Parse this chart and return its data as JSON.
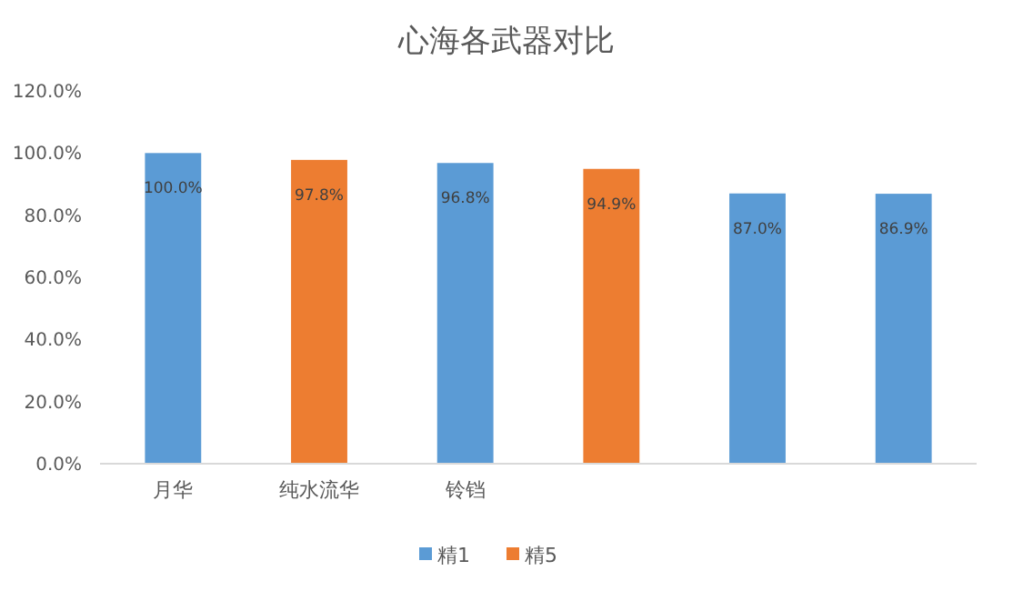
{
  "chart_data": {
    "type": "bar",
    "title": "心海各武器对比",
    "categories": [
      "月华",
      "纯水流华",
      "铃铛",
      null,
      null,
      null
    ],
    "series": [
      {
        "name": "精1",
        "color": "#5b9bd5",
        "values": [
          100,
          null,
          96.8,
          null,
          87.0,
          86.9
        ],
        "value_labels": [
          "100.0%",
          null,
          "96.8%",
          null,
          "87.0%",
          "86.9%"
        ]
      },
      {
        "name": "精5",
        "color": "#ed7d31",
        "values": [
          null,
          97.8,
          null,
          94.9,
          null,
          null
        ],
        "value_labels": [
          null,
          "97.8%",
          null,
          "94.9%",
          null,
          null
        ]
      }
    ],
    "ylim": [
      0,
      120
    ],
    "yticks": [
      {
        "value": 0,
        "label": "0.0%"
      },
      {
        "value": 20,
        "label": "20.0%"
      },
      {
        "value": 40,
        "label": "40.0%"
      },
      {
        "value": 60,
        "label": "60.0%"
      },
      {
        "value": 80,
        "label": "80.0%"
      },
      {
        "value": 100,
        "label": "100.0%"
      },
      {
        "value": 120,
        "label": "120.0%"
      }
    ],
    "grid": false,
    "legend": "bottom"
  }
}
